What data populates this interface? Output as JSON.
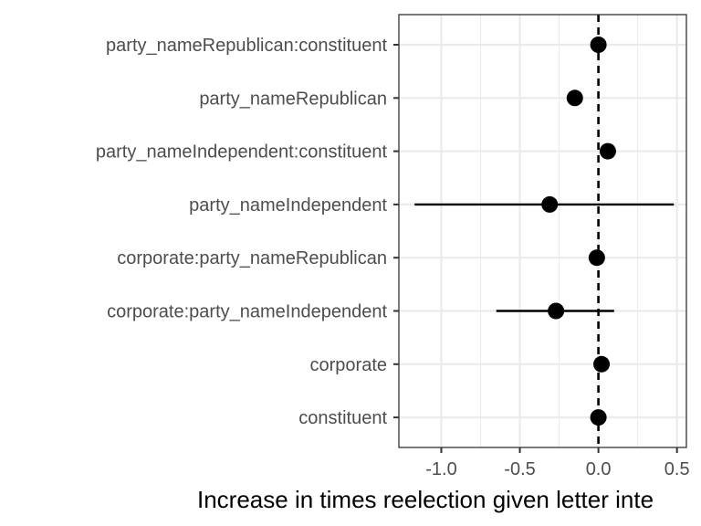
{
  "chart_data": {
    "type": "scatter",
    "xlabel": "Increase in times reelection given letter inte",
    "xlim": [
      -1.27,
      0.56
    ],
    "x_ticks": [
      -1.0,
      -0.5,
      0.0,
      0.5
    ],
    "x_tick_labels": [
      "-1.0",
      "-0.5",
      "0.0",
      "0.5"
    ],
    "reference_line_x": 0,
    "grid": true,
    "series": [
      {
        "points": [
          {
            "label": "party_nameRepublican:constituent",
            "estimate": 0.0,
            "lower": null,
            "upper": null
          },
          {
            "label": "party_nameRepublican",
            "estimate": -0.15,
            "lower": null,
            "upper": null
          },
          {
            "label": "party_nameIndependent:constituent",
            "estimate": 0.06,
            "lower": null,
            "upper": null
          },
          {
            "label": "party_nameIndependent",
            "estimate": -0.31,
            "lower": -1.17,
            "upper": 0.48
          },
          {
            "label": "corporate:party_nameRepublican",
            "estimate": -0.01,
            "lower": null,
            "upper": null
          },
          {
            "label": "corporate:party_nameIndependent",
            "estimate": -0.27,
            "lower": -0.65,
            "upper": 0.1
          },
          {
            "label": "corporate",
            "estimate": 0.02,
            "lower": null,
            "upper": null
          },
          {
            "label": "constituent",
            "estimate": 0.0,
            "lower": null,
            "upper": null
          }
        ]
      }
    ],
    "colors": {
      "point": "#000000",
      "grid": "#ebebeb",
      "panel_border": "#333333",
      "tick_text": "#4d4d4d"
    }
  }
}
